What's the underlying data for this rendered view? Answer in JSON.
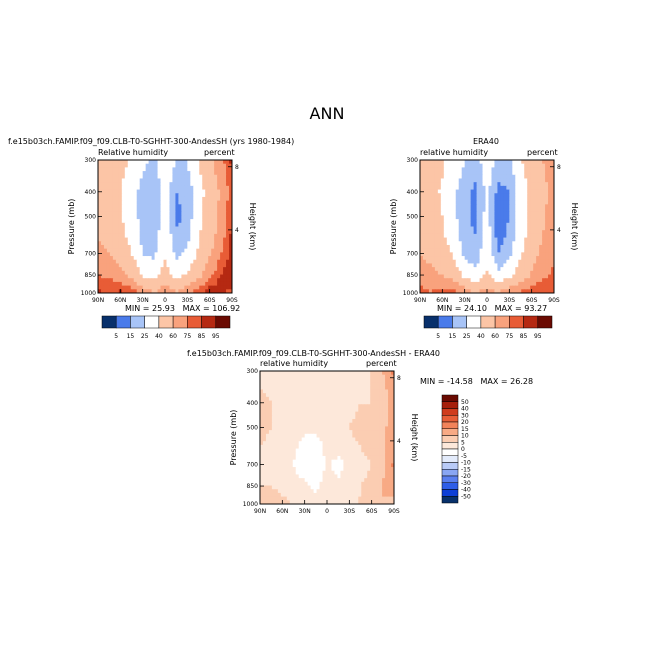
{
  "page": {
    "title": "ANN"
  },
  "colors": {
    "base_palette": [
      "#08306b",
      "#1d4fd8",
      "#4a7bea",
      "#7aa2f2",
      "#a8c4f7",
      "#d3e1fb",
      "#ffffff",
      "#fde3d2",
      "#fcc5a6",
      "#f9a27d",
      "#f47d55",
      "#e85c36",
      "#d33f20",
      "#b52912",
      "#8e1707",
      "#6a0a02"
    ],
    "diff_palette": [
      "#08306b",
      "#0d3fd6",
      "#2f5ee8",
      "#5a7fef",
      "#89a6f3",
      "#b9cbf7",
      "#e3ebfb",
      "#ffffff",
      "#fde8da",
      "#fbcdb2",
      "#f8aa85",
      "#f2835a",
      "#e75e37",
      "#cf3c1d",
      "#a61f0b",
      "#6a0a02"
    ]
  },
  "chart_data": [
    {
      "type": "heatmap",
      "title": "f.e15b03ch.FAMIP.f09_f09.CLB-T0-SGHHT-300-AndesSH (yrs 1980-1984)",
      "left_label": "Relative humidity",
      "right_label": "percent",
      "ylabel": "Pressure (mb)",
      "y2label": "Height (km)",
      "xticks": [
        "90N",
        "60N",
        "30N",
        "0",
        "30S",
        "60S",
        "90S"
      ],
      "yticks": [
        "300",
        "400",
        "500",
        "700",
        "850",
        "1000"
      ],
      "y2ticks": [
        "8",
        "4"
      ],
      "xlim": [
        90,
        -90
      ],
      "ylim": [
        1000,
        300
      ],
      "x": [
        90,
        75,
        60,
        45,
        30,
        15,
        0,
        -15,
        -30,
        -45,
        -60,
        -75,
        -90
      ],
      "y": [
        1000,
        925,
        850,
        700,
        600,
        500,
        400,
        300
      ],
      "z": [
        [
          90,
          80,
          88,
          85,
          70,
          60,
          72,
          62,
          75,
          82,
          95,
          88,
          80
        ],
        [
          82,
          80,
          78,
          70,
          55,
          48,
          60,
          48,
          58,
          68,
          80,
          90,
          88
        ],
        [
          75,
          72,
          65,
          55,
          38,
          32,
          48,
          32,
          42,
          55,
          70,
          85,
          92
        ],
        [
          65,
          60,
          52,
          40,
          25,
          22,
          38,
          22,
          28,
          42,
          58,
          75,
          90
        ],
        [
          58,
          55,
          45,
          35,
          22,
          18,
          35,
          18,
          20,
          38,
          52,
          68,
          88
        ],
        [
          52,
          50,
          42,
          32,
          20,
          15,
          32,
          12,
          18,
          35,
          50,
          65,
          85
        ],
        [
          50,
          48,
          40,
          30,
          20,
          15,
          30,
          15,
          18,
          32,
          48,
          62,
          82
        ],
        [
          52,
          50,
          45,
          38,
          28,
          22,
          35,
          25,
          25,
          40,
          55,
          70,
          88
        ]
      ],
      "stats": {
        "min_label": "MIN =",
        "min": "25.93",
        "max_label": "MAX =",
        "max": "106.92"
      },
      "colorbar": {
        "levels": [
          "5",
          "15",
          "25",
          "40",
          "60",
          "75",
          "85",
          "95"
        ]
      }
    },
    {
      "type": "heatmap",
      "title": "ERA40",
      "left_label": "relative humidity",
      "right_label": "percent",
      "ylabel": "Pressure (mb)",
      "y2label": "Height (km)",
      "xticks": [
        "90N",
        "60N",
        "30N",
        "0",
        "30S",
        "60S",
        "90S"
      ],
      "yticks": [
        "300",
        "400",
        "500",
        "700",
        "850",
        "1000"
      ],
      "y2ticks": [
        "8",
        "4"
      ],
      "xlim": [
        90,
        -90
      ],
      "ylim": [
        1000,
        300
      ],
      "x": [
        90,
        75,
        60,
        45,
        30,
        15,
        0,
        -15,
        -30,
        -45,
        -60,
        -75,
        -90
      ],
      "y": [
        1000,
        925,
        850,
        700,
        600,
        500,
        400,
        300
      ],
      "z": [
        [
          78,
          75,
          80,
          82,
          70,
          60,
          68,
          60,
          72,
          78,
          85,
          82,
          75
        ],
        [
          75,
          72,
          72,
          68,
          52,
          45,
          55,
          45,
          52,
          62,
          72,
          80,
          80
        ],
        [
          68,
          65,
          60,
          52,
          35,
          28,
          42,
          28,
          35,
          48,
          62,
          72,
          78
        ],
        [
          60,
          55,
          48,
          38,
          22,
          18,
          35,
          15,
          22,
          38,
          52,
          65,
          72
        ],
        [
          55,
          50,
          42,
          32,
          18,
          15,
          32,
          10,
          18,
          32,
          48,
          60,
          70
        ],
        [
          50,
          48,
          40,
          28,
          18,
          12,
          30,
          8,
          15,
          30,
          45,
          58,
          68
        ],
        [
          48,
          45,
          38,
          28,
          18,
          12,
          28,
          12,
          15,
          30,
          45,
          55,
          65
        ],
        [
          50,
          48,
          42,
          35,
          25,
          20,
          32,
          22,
          22,
          38,
          50,
          60,
          68
        ]
      ],
      "stats": {
        "min_label": "MIN =",
        "min": "24.10",
        "max_label": "MAX =",
        "max": "93.27"
      },
      "colorbar": {
        "levels": [
          "5",
          "15",
          "25",
          "40",
          "60",
          "75",
          "85",
          "95"
        ]
      }
    },
    {
      "type": "heatmap",
      "title": "f.e15b03ch.FAMIP.f09_f09.CLB-T0-SGHHT-300-AndesSH - ERA40",
      "left_label": "relative humidity",
      "right_label": "percent",
      "ylabel": "Pressure (mb)",
      "y2label": "Height (km)",
      "xticks": [
        "90N",
        "60N",
        "30N",
        "0",
        "30S",
        "60S",
        "90S"
      ],
      "yticks": [
        "300",
        "400",
        "500",
        "700",
        "850",
        "1000"
      ],
      "y2ticks": [
        "8",
        "4"
      ],
      "xlim": [
        90,
        -90
      ],
      "ylim": [
        1000,
        300
      ],
      "x": [
        90,
        75,
        60,
        45,
        30,
        15,
        0,
        -15,
        -30,
        -45,
        -60,
        -75,
        -90
      ],
      "y": [
        1000,
        925,
        850,
        700,
        600,
        500,
        400,
        300
      ],
      "z": [
        [
          8,
          10,
          6,
          5,
          2,
          2,
          5,
          3,
          3,
          6,
          8,
          8,
          6
        ],
        [
          6,
          6,
          5,
          4,
          2,
          1,
          3,
          2,
          4,
          5,
          8,
          10,
          12
        ],
        [
          5,
          5,
          4,
          2,
          1,
          -2,
          3,
          1,
          3,
          5,
          6,
          10,
          14
        ],
        [
          5,
          4,
          2,
          0,
          -3,
          -5,
          1,
          -2,
          2,
          4,
          5,
          9,
          16
        ],
        [
          5,
          4,
          2,
          1,
          -2,
          -4,
          2,
          2,
          4,
          5,
          6,
          8,
          15
        ],
        [
          6,
          5,
          3,
          2,
          1,
          2,
          3,
          4,
          5,
          6,
          6,
          8,
          14
        ],
        [
          6,
          5,
          3,
          2,
          2,
          3,
          3,
          4,
          4,
          5,
          5,
          7,
          12
        ],
        [
          4,
          4,
          3,
          3,
          3,
          3,
          3,
          3,
          3,
          4,
          5,
          10,
          16
        ]
      ],
      "stats": {
        "min_label": "MIN =",
        "min": "-14.58",
        "max_label": "MAX =",
        "max": "26.28"
      },
      "colorbar": {
        "levels": [
          "50",
          "40",
          "30",
          "20",
          "15",
          "10",
          "5",
          "0",
          "-5",
          "-10",
          "-15",
          "-20",
          "-30",
          "-40",
          "-50"
        ]
      }
    }
  ]
}
